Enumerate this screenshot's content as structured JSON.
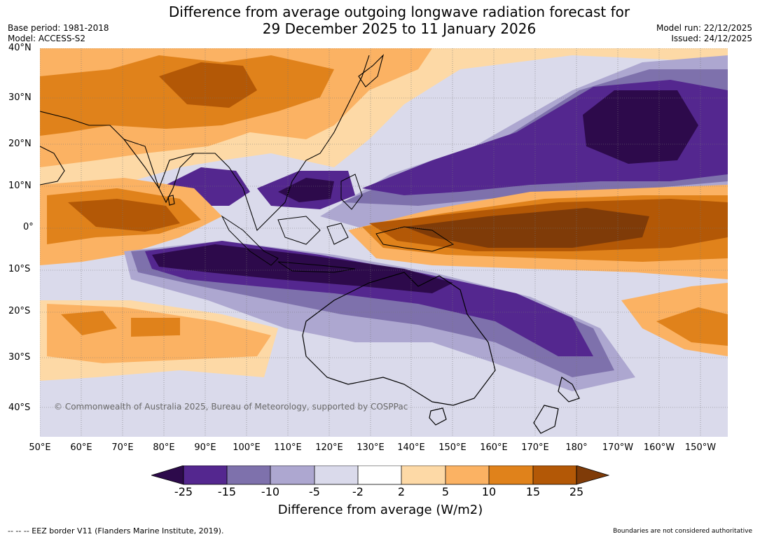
{
  "title": {
    "line1": "Difference from average outgoing longwave radiation forecast for",
    "line2": "29 December 2025 to 11 January 2026"
  },
  "meta_left": {
    "base_period": "Base period: 1981-2018",
    "model": "Model: ACCESS-S2"
  },
  "meta_right": {
    "model_run": "Model run: 22/12/2025",
    "issued": "Issued: 24/12/2025"
  },
  "latitude_labels": [
    "40°N",
    "30°N",
    "20°N",
    "10°N",
    "0°",
    "10°S",
    "20°S",
    "30°S",
    "40°S"
  ],
  "longitude_labels": [
    "50°E",
    "60°E",
    "70°E",
    "80°E",
    "90°E",
    "100°E",
    "110°E",
    "120°E",
    "130°E",
    "140°E",
    "150°E",
    "160°E",
    "170°E",
    "180°",
    "170°W",
    "160°W",
    "150°W"
  ],
  "copyright": "© Commonwealth of Australia 2025, Bureau of Meteorology, supported by COSPPac",
  "legend": {
    "title": "Difference from average (W/m2)",
    "ticks": [
      "-25",
      "-15",
      "-10",
      "-5",
      "-2",
      "2",
      "5",
      "10",
      "15",
      "25"
    ],
    "colors": {
      "lt_-25": "#2d0a4b",
      "m25_m15": "#54278f",
      "m15_m10": "#7e71ac",
      "m10_m5": "#ada7d0",
      "m5_m2": "#dadaeb",
      "m2_2": "#ffffff",
      "2_5": "#fdd9a6",
      "5_10": "#fbb263",
      "10_15": "#e0821b",
      "15_25": "#b35806",
      "gt_25": "#7f3b08"
    }
  },
  "footer": {
    "eez": "--  --  -- EEZ border V11 (Flanders Marine Institute, 2019).",
    "disclaimer": "Boundaries are not considered authoritative"
  }
}
